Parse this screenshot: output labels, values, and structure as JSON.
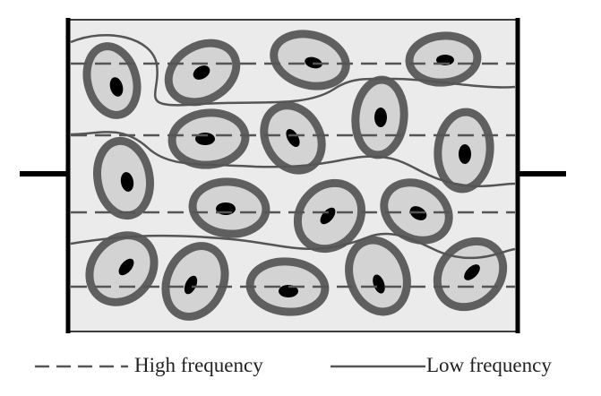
{
  "colors": {
    "background": "#ffffff",
    "chamber_fill": "#ebebeb",
    "electrode": "#000000",
    "cell_ring": "#5f5f5f",
    "cytoplasm": "#d3d3d3",
    "nucleus": "#000000",
    "high_frequency_line": "#555555",
    "low_frequency_line": "#555555"
  },
  "legend": {
    "high_frequency": "High frequency",
    "low_frequency": "Low frequency"
  },
  "icons": {
    "high_frequency_swatch": "dashed-line-icon",
    "low_frequency_swatch": "solid-line-icon"
  }
}
